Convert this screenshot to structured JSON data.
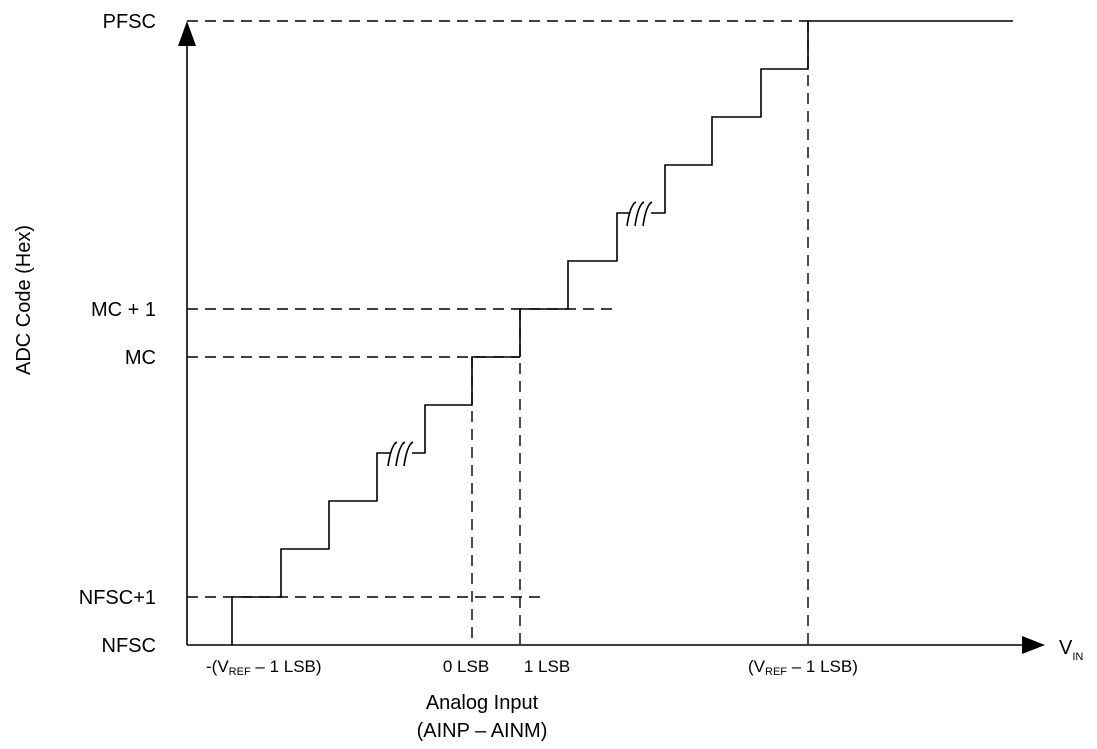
{
  "y_axis": {
    "title": "ADC Code (Hex)",
    "levels": [
      "PFSC",
      "MC + 1",
      "MC",
      "NFSC+1",
      "NFSC"
    ]
  },
  "x_axis": {
    "variable_main": "V",
    "variable_sub": "IN",
    "ticks": {
      "neg_ref": {
        "pre": "-(V",
        "sub": "REF",
        "post": " – 1 LSB)"
      },
      "zero": "0 LSB",
      "one": "1 LSB",
      "pos_ref": {
        "pre": "(V",
        "sub": "REF",
        "post": " – 1 LSB)"
      }
    },
    "caption_line1": "Analog Input",
    "caption_line2": "(AINP – AINM)"
  }
}
